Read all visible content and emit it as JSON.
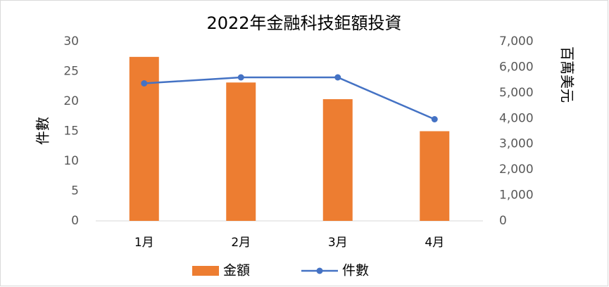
{
  "chart_data": {
    "type": "bar-line",
    "title": "2022年金融科技鉅額投資",
    "categories": [
      "1月",
      "2月",
      "3月",
      "4月"
    ],
    "series": [
      {
        "name": "金額",
        "type": "bar",
        "color": "#ed7d31",
        "axis": "y2",
        "values": [
          6400,
          5400,
          4750,
          3500
        ]
      },
      {
        "name": "件數",
        "type": "line",
        "color": "#4472c4",
        "values": [
          23,
          24,
          24,
          17
        ]
      }
    ],
    "ylabel": "件數",
    "y2label": "百萬美元",
    "ylim": [
      0,
      30
    ],
    "yticks": [
      0,
      5,
      10,
      15,
      20,
      25,
      30
    ],
    "y2lim": [
      0,
      7000
    ],
    "y2ticks": [
      0,
      {
        "value": 1000,
        "label": "1,000"
      },
      {
        "value": 2000,
        "label": "2,000"
      },
      {
        "value": 3000,
        "label": "3,000"
      },
      {
        "value": 4000,
        "label": "4,000"
      },
      {
        "value": 5000,
        "label": "5,000"
      },
      {
        "value": 6000,
        "label": "6,000"
      },
      {
        "value": 7000,
        "label": "7,000"
      }
    ],
    "grid": false,
    "legend": "bottom"
  }
}
